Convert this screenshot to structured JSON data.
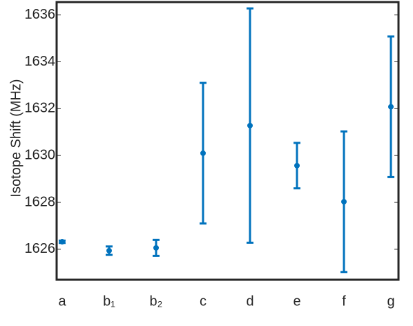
{
  "chart_data": {
    "type": "errorbar",
    "y_label": "Isotope Shift (MHz)",
    "categories": [
      "a",
      "b₁",
      "b₂",
      "c",
      "d",
      "e",
      "f",
      "g"
    ],
    "values": [
      1626.32,
      1625.94,
      1626.06,
      1630.1,
      1631.28,
      1629.57,
      1628.03,
      1632.08
    ],
    "errors": [
      0.05,
      0.18,
      0.34,
      3.0,
      5.0,
      0.97,
      3.0,
      3.0
    ],
    "color": "#0072bd",
    "ylim": [
      1624.7,
      1636.55
    ],
    "yticks": [
      1626,
      1628,
      1630,
      1632,
      1634,
      1636
    ]
  }
}
